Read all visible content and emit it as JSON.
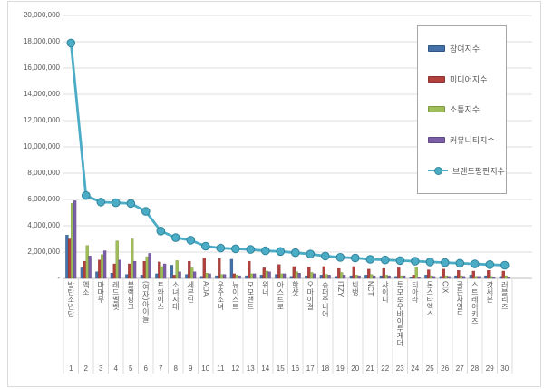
{
  "chart_data": {
    "type": "bar",
    "variant": "clustered-bars-with-line-overlay",
    "title": "",
    "xlabel": "",
    "ylabel": "",
    "grid": true,
    "legend_position": "upper-right-box",
    "ylim": [
      0,
      20000000
    ],
    "y_ticks": [
      {
        "label": "-",
        "value": 0
      },
      {
        "label": "2,000,000",
        "value": 2000000
      },
      {
        "label": "4,000,000",
        "value": 4000000
      },
      {
        "label": "6,000,000",
        "value": 6000000
      },
      {
        "label": "8,000,000",
        "value": 8000000
      },
      {
        "label": "10,000,000",
        "value": 10000000
      },
      {
        "label": "12,000,000",
        "value": 12000000
      },
      {
        "label": "14,000,000",
        "value": 14000000
      },
      {
        "label": "16,000,000",
        "value": 16000000
      },
      {
        "label": "18,000,000",
        "value": 18000000
      },
      {
        "label": "20,000,000",
        "value": 20000000
      }
    ],
    "categories": [
      "방탄소년단",
      "엑소",
      "마마무",
      "레드벨벳",
      "블랙핑크",
      "(여자)아이들",
      "트와이스",
      "소녀시대",
      "세븐틴",
      "AOA",
      "우주소녀",
      "뉴이스트",
      "모모랜드",
      "위너",
      "아스트로",
      "핫샷",
      "오마이걸",
      "슈퍼주니어",
      "ITZY",
      "빅뱅",
      "NCT",
      "샤이니",
      "투모로우바이투게더",
      "티아라",
      "몬스타엑스",
      "CIX",
      "골든차일드",
      "스트레이키즈",
      "갓세븐",
      "러블리즈"
    ],
    "ranks": [
      "1",
      "2",
      "3",
      "4",
      "5",
      "6",
      "7",
      "8",
      "9",
      "10",
      "11",
      "12",
      "13",
      "14",
      "15",
      "16",
      "17",
      "18",
      "19",
      "20",
      "21",
      "22",
      "23",
      "24",
      "25",
      "26",
      "27",
      "28",
      "29",
      "30"
    ],
    "series": [
      {
        "key": "participation",
        "name": "참여지수",
        "type": "bar",
        "color": "#4472A8",
        "border": "#2F5580",
        "values": [
          3300000,
          800000,
          500000,
          400000,
          300000,
          250000,
          350000,
          1000000,
          300000,
          150000,
          200000,
          1450000,
          200000,
          250000,
          300000,
          150000,
          200000,
          250000,
          150000,
          200000,
          250000,
          200000,
          150000,
          100000,
          250000,
          150000,
          200000,
          250000,
          200000,
          150000
        ]
      },
      {
        "key": "media",
        "name": "미디어지수",
        "type": "bar",
        "color": "#B2413E",
        "border": "#8C3330",
        "values": [
          3000000,
          1300000,
          1400000,
          1100000,
          1100000,
          1300000,
          1250000,
          250000,
          1300000,
          1550000,
          1500000,
          350000,
          1300000,
          800000,
          1050000,
          900000,
          850000,
          900000,
          750000,
          900000,
          700000,
          750000,
          800000,
          250000,
          650000,
          700000,
          600000,
          550000,
          600000,
          550000
        ]
      },
      {
        "key": "communication",
        "name": "소통지수",
        "type": "bar",
        "color": "#9FBE59",
        "border": "#7D9A40",
        "values": [
          5700000,
          2500000,
          1800000,
          2850000,
          3000000,
          1650000,
          900000,
          1350000,
          800000,
          400000,
          300000,
          250000,
          350000,
          550000,
          350000,
          500000,
          450000,
          300000,
          450000,
          250000,
          300000,
          250000,
          200000,
          850000,
          200000,
          200000,
          200000,
          150000,
          150000,
          200000
        ]
      },
      {
        "key": "community",
        "name": "커뮤니티지수",
        "type": "bar",
        "color": "#7B5EA7",
        "border": "#5F4883",
        "values": [
          5900000,
          1700000,
          2100000,
          1400000,
          1300000,
          1900000,
          1100000,
          500000,
          500000,
          350000,
          300000,
          200000,
          350000,
          500000,
          350000,
          400000,
          350000,
          250000,
          250000,
          200000,
          200000,
          200000,
          200000,
          100000,
          150000,
          150000,
          150000,
          150000,
          100000,
          100000
        ]
      },
      {
        "key": "brand-reputation",
        "name": "브랜드평판지수",
        "type": "line",
        "color": "#4BACC6",
        "border": "#31849B",
        "values": [
          17900000,
          6300000,
          5800000,
          5750000,
          5700000,
          5100000,
          3600000,
          3100000,
          2900000,
          2450000,
          2300000,
          2250000,
          2200000,
          2100000,
          2050000,
          1950000,
          1850000,
          1700000,
          1600000,
          1550000,
          1450000,
          1400000,
          1350000,
          1300000,
          1250000,
          1200000,
          1150000,
          1100000,
          1050000,
          1000000
        ]
      }
    ]
  }
}
